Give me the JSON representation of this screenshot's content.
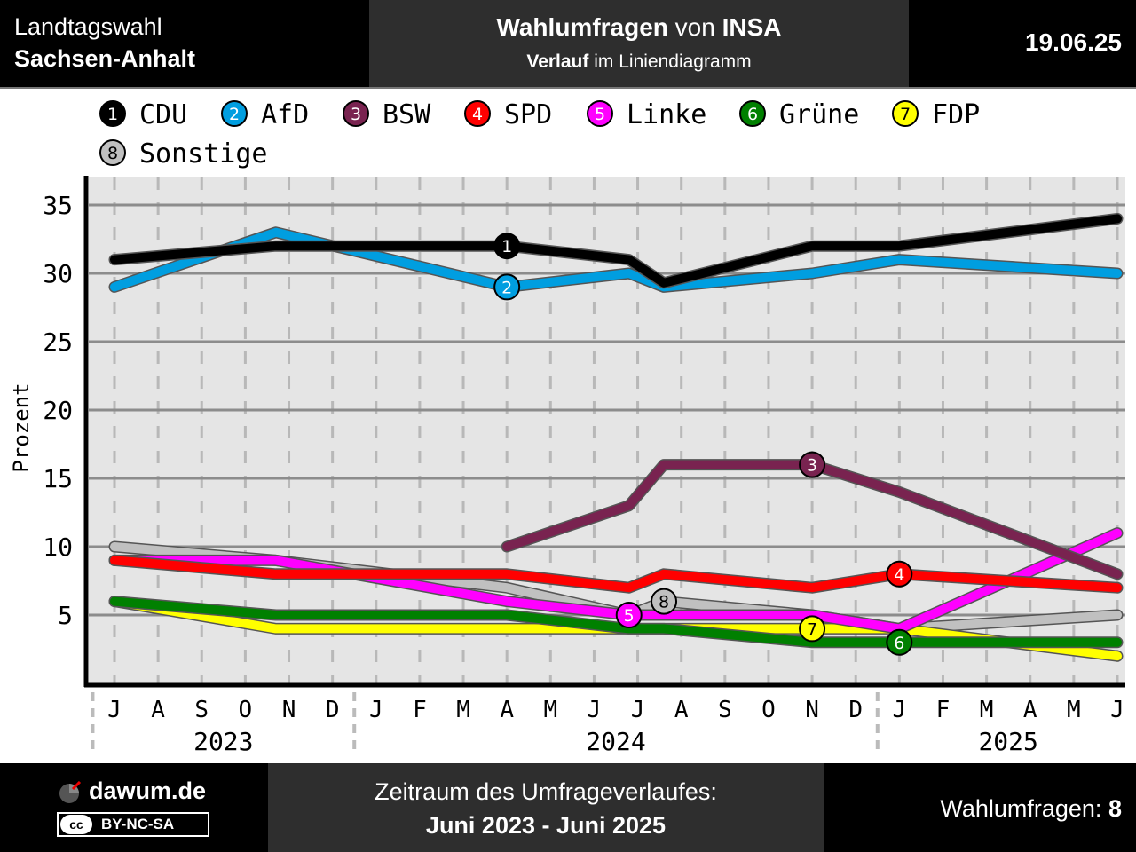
{
  "header": {
    "election_line1": "Landtagswahl",
    "election_line2": "Sachsen-Anhalt",
    "title_bold1": "Wahlumfragen",
    "title_normal": "von",
    "title_bold2": "INSA",
    "subtitle_bold": "Verlauf",
    "subtitle_normal": "im Liniendiagramm",
    "date": "19.06.25"
  },
  "footer": {
    "brand": "dawum.de",
    "license": "BY-NC-SA",
    "license_icon": "cc",
    "period_label": "Zeitraum des Umfrageverlaufes:",
    "period_value": "Juni 2023 - Juni 2025",
    "count_label": "Wahlumfragen:",
    "count_value": "8"
  },
  "chart_data": {
    "type": "line",
    "ylabel": "Prozent",
    "ylim": [
      0,
      37
    ],
    "yticks": [
      5,
      10,
      15,
      20,
      25,
      30,
      35
    ],
    "grid": true,
    "legend_position": "top",
    "month_labels": [
      "J",
      "A",
      "S",
      "O",
      "N",
      "D",
      "J",
      "F",
      "M",
      "A",
      "M",
      "J",
      "J",
      "A",
      "S",
      "O",
      "N",
      "D",
      "J",
      "F",
      "M",
      "A",
      "M",
      "J"
    ],
    "year_labels": [
      {
        "label": "2023",
        "month_index": 2.5
      },
      {
        "label": "2024",
        "month_index": 11.5
      },
      {
        "label": "2025",
        "month_index": 20.5
      }
    ],
    "series": [
      {
        "id": 1,
        "name": "CDU",
        "color": "#000000",
        "label_index": 9,
        "points": [
          [
            0,
            31
          ],
          [
            3.7,
            32
          ],
          [
            9,
            32
          ],
          [
            11.8,
            31
          ],
          [
            12.6,
            29.3
          ],
          [
            16,
            32
          ],
          [
            18,
            32
          ],
          [
            23,
            34
          ]
        ]
      },
      {
        "id": 2,
        "name": "AfD",
        "color": "#009ee0",
        "label_index": 9,
        "points": [
          [
            0,
            29
          ],
          [
            3.7,
            33
          ],
          [
            9,
            29
          ],
          [
            11.8,
            30
          ],
          [
            12.6,
            29
          ],
          [
            16,
            30
          ],
          [
            18,
            31
          ],
          [
            23,
            30
          ]
        ]
      },
      {
        "id": 3,
        "name": "BSW",
        "color": "#792350",
        "label_index": 16,
        "points": [
          [
            9,
            10
          ],
          [
            11.8,
            13
          ],
          [
            12.6,
            16
          ],
          [
            16,
            16
          ],
          [
            18,
            14
          ],
          [
            23,
            8
          ]
        ]
      },
      {
        "id": 4,
        "name": "SPD",
        "color": "#ff0000",
        "label_index": 18,
        "points": [
          [
            0,
            9
          ],
          [
            3.7,
            8
          ],
          [
            9,
            8
          ],
          [
            11.8,
            7
          ],
          [
            12.6,
            8
          ],
          [
            16,
            7
          ],
          [
            18,
            8
          ],
          [
            23,
            7
          ]
        ]
      },
      {
        "id": 5,
        "name": "Linke",
        "color": "#ff00ff",
        "label_index": 11.8,
        "points": [
          [
            0,
            9
          ],
          [
            3.7,
            9
          ],
          [
            9,
            6
          ],
          [
            11.8,
            5
          ],
          [
            12.6,
            5
          ],
          [
            16,
            5
          ],
          [
            18,
            4
          ],
          [
            23,
            11
          ]
        ]
      },
      {
        "id": 6,
        "name": "Grüne",
        "color": "#008000",
        "label_index": 18,
        "points": [
          [
            0,
            6
          ],
          [
            3.7,
            5
          ],
          [
            9,
            5
          ],
          [
            11.8,
            4
          ],
          [
            12.6,
            4
          ],
          [
            16,
            3
          ],
          [
            18,
            3
          ],
          [
            23,
            3
          ]
        ]
      },
      {
        "id": 7,
        "name": "FDP",
        "color": "#ffff00",
        "label_index": 16,
        "points": [
          [
            0,
            6
          ],
          [
            3.7,
            4
          ],
          [
            9,
            4
          ],
          [
            11.8,
            4
          ],
          [
            12.6,
            4
          ],
          [
            16,
            4
          ],
          [
            18,
            4
          ],
          [
            23,
            2
          ]
        ]
      },
      {
        "id": 8,
        "name": "Sonstige",
        "color": "#c0c0c0",
        "label_index": 12.6,
        "points": [
          [
            0,
            10
          ],
          [
            3.7,
            9
          ],
          [
            9,
            7
          ],
          [
            11.8,
            5
          ],
          [
            12.6,
            6
          ],
          [
            16,
            5
          ],
          [
            18,
            4
          ],
          [
            23,
            5
          ]
        ]
      }
    ]
  }
}
